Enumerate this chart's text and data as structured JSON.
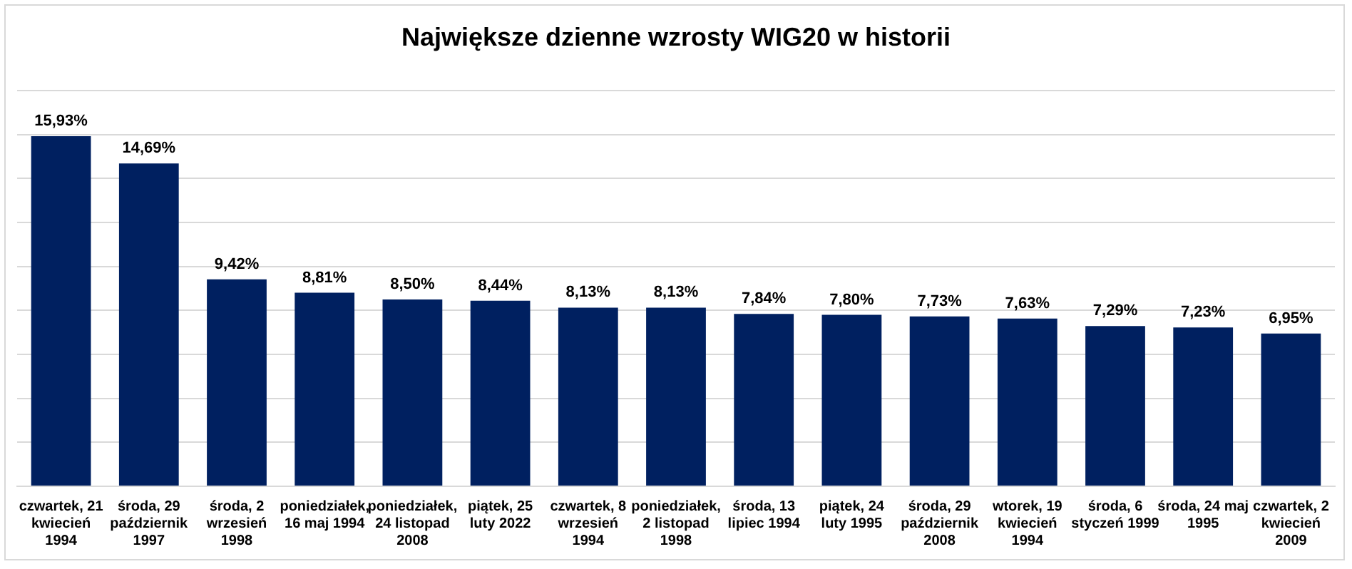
{
  "chart_data": {
    "type": "bar",
    "title": "Największe dzienne wzrosty WIG20 w historii",
    "categories": [
      "czwartek, 21 kwiecień 1994",
      "środa, 29 październik 1997",
      "środa, 2 wrzesień 1998",
      "poniedziałek, 16 maj 1994",
      "poniedziałek, 24 listopad 2008",
      "piątek, 25 luty 2022",
      "czwartek, 8 wrzesień 1994",
      "poniedziałek, 2 listopad 1998",
      "środa, 13 lipiec 1994",
      "piątek, 24 luty 1995",
      "środa, 29 październik 2008",
      "wtorek, 19 kwiecień 1994",
      "środa, 6 styczeń 1999",
      "środa, 24 maj 1995",
      "czwartek, 2 kwiecień 2009"
    ],
    "values": [
      15.93,
      14.69,
      9.42,
      8.81,
      8.5,
      8.44,
      8.13,
      8.13,
      7.84,
      7.8,
      7.73,
      7.63,
      7.29,
      7.23,
      6.95
    ],
    "value_labels": [
      "15,93%",
      "14,69%",
      "9,42%",
      "8,81%",
      "8,50%",
      "8,44%",
      "8,13%",
      "8,13%",
      "7,84%",
      "7,80%",
      "7,73%",
      "7,63%",
      "7,29%",
      "7,23%",
      "6,95%"
    ],
    "color": "#002060",
    "ylim": [
      0,
      18
    ],
    "yticks": [
      {
        "value": 0,
        "label": null
      },
      {
        "value": 2,
        "label": null
      },
      {
        "value": 4,
        "label": null
      },
      {
        "value": 6,
        "label": null
      },
      {
        "value": 8,
        "label": null
      },
      {
        "value": 10,
        "label": null
      },
      {
        "value": 12,
        "label": null
      },
      {
        "value": 14,
        "label": null
      },
      {
        "value": 16,
        "label": null
      },
      {
        "value": 18,
        "label": null
      }
    ],
    "grid": "y",
    "tick_labels": "x",
    "legend": false
  }
}
